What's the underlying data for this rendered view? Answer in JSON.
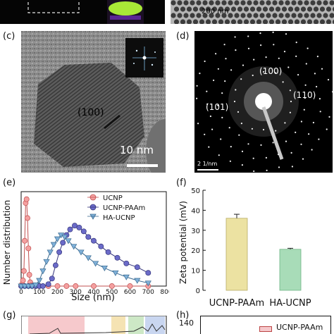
{
  "panel_labels": {
    "c": "(c)",
    "d": "(d)",
    "e": "(e)",
    "f": "(f)",
    "g": "(g)",
    "h": "(h)"
  },
  "panel_b": {
    "scale_label": "200 nm"
  },
  "panel_c": {
    "plane_label": "(100)",
    "scale_label": "10 nm"
  },
  "panel_d": {
    "rings": [
      "(100)",
      "(101)",
      "(110)"
    ],
    "scale_label": "2 1/nm"
  },
  "panel_e": {
    "ylabel": "Number distribution",
    "xlabel": "Size (nm)",
    "legend": [
      "UCNP",
      "UCNP-PAAm",
      "HA-UCNP"
    ],
    "x_ticks": [
      "0",
      "100",
      "200",
      "300",
      "400",
      "500",
      "600",
      "700",
      "800"
    ]
  },
  "panel_f": {
    "ylabel": "Zeta potential (mV)",
    "y_ticks": [
      "0",
      "10",
      "20",
      "30",
      "40",
      "50"
    ],
    "categories": [
      "UCNP-PAAm",
      "HA-UCNP"
    ]
  },
  "panel_h": {
    "y_tick": "140",
    "legend": "UCNP-PAAm"
  },
  "colors": {
    "ucnp": "#f4a0a0",
    "ucnp_paam": "#6b6bc8",
    "ha_ucnp": "#7fb0d8",
    "bar_paam": "#ece2a2",
    "bar_ha": "#a8dcb8"
  },
  "chart_data": [
    {
      "type": "line",
      "xlabel": "Size (nm)",
      "ylabel": "Number distribution",
      "xlim": [
        0,
        800
      ],
      "ylim": [
        0,
        25
      ],
      "series": [
        {
          "name": "UCNP",
          "x": [
            5,
            10,
            15,
            20,
            25,
            30,
            35,
            40,
            45,
            50,
            60,
            80,
            100,
            150,
            200,
            250,
            300,
            400,
            500,
            600,
            700
          ],
          "y": [
            0.5,
            1.5,
            4,
            12,
            22,
            23,
            18,
            10,
            3,
            1,
            0.3,
            0,
            0,
            0,
            0,
            0,
            0,
            0,
            0,
            0,
            0
          ]
        },
        {
          "name": "UCNP-PAAm",
          "x": [
            0,
            20,
            40,
            60,
            80,
            100,
            120,
            150,
            170,
            190,
            210,
            230,
            250,
            270,
            295,
            320,
            345,
            370,
            400,
            440,
            480,
            530,
            580,
            640,
            700
          ],
          "y": [
            0,
            0,
            0,
            0,
            0,
            0,
            0,
            0.5,
            2,
            5.5,
            9,
            11.5,
            13.5,
            15,
            16,
            15.5,
            14.5,
            13,
            12,
            10.5,
            9,
            7.5,
            6,
            5,
            3.5
          ]
        },
        {
          "name": "HA-UCNP",
          "x": [
            0,
            20,
            40,
            60,
            80,
            100,
            120,
            140,
            160,
            180,
            200,
            220,
            240,
            260,
            290,
            330,
            370,
            410,
            460,
            520,
            580,
            640,
            700
          ],
          "y": [
            0,
            0,
            0,
            0,
            0.3,
            1.5,
            4,
            6.5,
            9,
            11,
            12.5,
            13.5,
            13,
            12,
            10.5,
            9,
            7.5,
            6,
            4.8,
            3.5,
            2.4,
            1.5,
            0.8
          ]
        }
      ]
    },
    {
      "type": "bar",
      "ylabel": "Zeta potential (mV)",
      "ylim": [
        0,
        50
      ],
      "categories": [
        "UCNP-PAAm",
        "HA-UCNP"
      ],
      "values": [
        36,
        20.5
      ],
      "errors": [
        2,
        0.5
      ]
    }
  ]
}
